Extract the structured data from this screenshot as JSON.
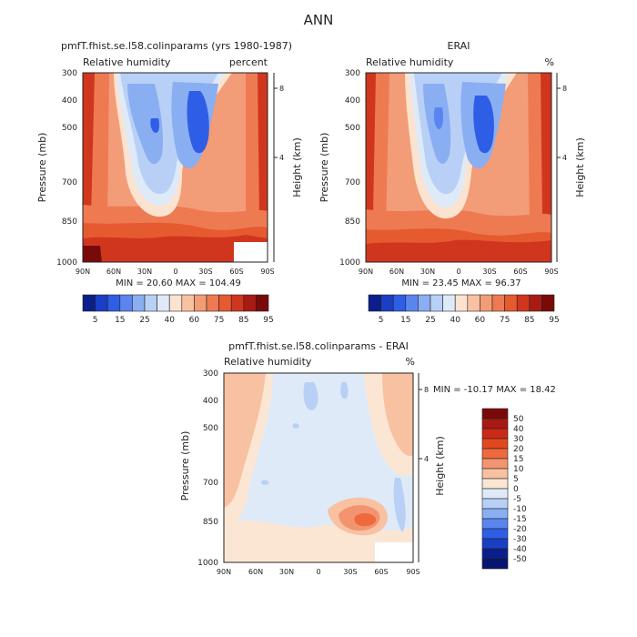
{
  "chart_data": [
    {
      "type": "heatmap",
      "figure_title": "ANN",
      "title": "pmfT.fhist.se.l58.colinparams (yrs 1980-1987)",
      "subtitle_left": "Relative humidity",
      "subtitle_right": "percent",
      "xlabel": "",
      "ylabel": "Pressure (mb)",
      "ylabel_right": "Height (km)",
      "x_ticks": [
        "90N",
        "60N",
        "30N",
        "0",
        "30S",
        "60S",
        "90S"
      ],
      "y_ticks": [
        "300",
        "400",
        "500",
        "700",
        "850",
        "1000"
      ],
      "height_ticks": [
        "8",
        "4"
      ],
      "stats": "MIN =  20.60   MAX = 104.49",
      "min": 20.6,
      "max": 104.49,
      "colorbar_labels": [
        "5",
        "15",
        "25",
        "40",
        "60",
        "75",
        "85",
        "95"
      ],
      "colorbar_colors": [
        "#0a1f8c",
        "#1a3fc4",
        "#2f5ee6",
        "#5b85ee",
        "#8aaef2",
        "#b9d0f6",
        "#dfeaf8",
        "#fbe3d0",
        "#f8c1a1",
        "#f39c78",
        "#ee7a52",
        "#e65a30",
        "#d0361e",
        "#a81a14",
        "#7a0a0a"
      ]
    },
    {
      "type": "heatmap",
      "title": "ERAI",
      "subtitle_left": "Relative humidity",
      "subtitle_right": "%",
      "ylabel": "Pressure (mb)",
      "ylabel_right": "Height (km)",
      "x_ticks": [
        "90N",
        "60N",
        "30N",
        "0",
        "30S",
        "60S",
        "90S"
      ],
      "y_ticks": [
        "300",
        "400",
        "500",
        "700",
        "850",
        "1000"
      ],
      "height_ticks": [
        "8",
        "4"
      ],
      "stats": "MIN =  23.45   MAX =  96.37",
      "min": 23.45,
      "max": 96.37,
      "colorbar_labels": [
        "5",
        "15",
        "25",
        "40",
        "60",
        "75",
        "85",
        "95"
      ]
    },
    {
      "type": "heatmap",
      "title": "pmfT.fhist.se.l58.colinparams - ERAI",
      "subtitle_left": "Relative humidity",
      "subtitle_right": "%",
      "ylabel": "Pressure (mb)",
      "ylabel_right": "Height (km)",
      "x_ticks": [
        "90N",
        "60N",
        "30N",
        "0",
        "30S",
        "60S",
        "90S"
      ],
      "y_ticks": [
        "300",
        "400",
        "500",
        "700",
        "850",
        "1000"
      ],
      "height_ticks": [
        "8",
        "4"
      ],
      "stats": "MIN = -10.17   MAX =  18.42",
      "min": -10.17,
      "max": 18.42,
      "colorbar_labels": [
        "50",
        "40",
        "30",
        "20",
        "15",
        "10",
        "5",
        "0",
        "-5",
        "-10",
        "-15",
        "-20",
        "-30",
        "-40",
        "-50"
      ],
      "colorbar_colors": [
        "#7a0a0a",
        "#a81a14",
        "#cc2a18",
        "#e2481f",
        "#ee6a3c",
        "#f39470",
        "#f8c1a1",
        "#fbe6d4",
        "#dfeaf8",
        "#b9d0f6",
        "#8aaef2",
        "#5b85ee",
        "#2f5ee6",
        "#1a3fc4",
        "#0a1f8c",
        "#061570"
      ]
    }
  ]
}
